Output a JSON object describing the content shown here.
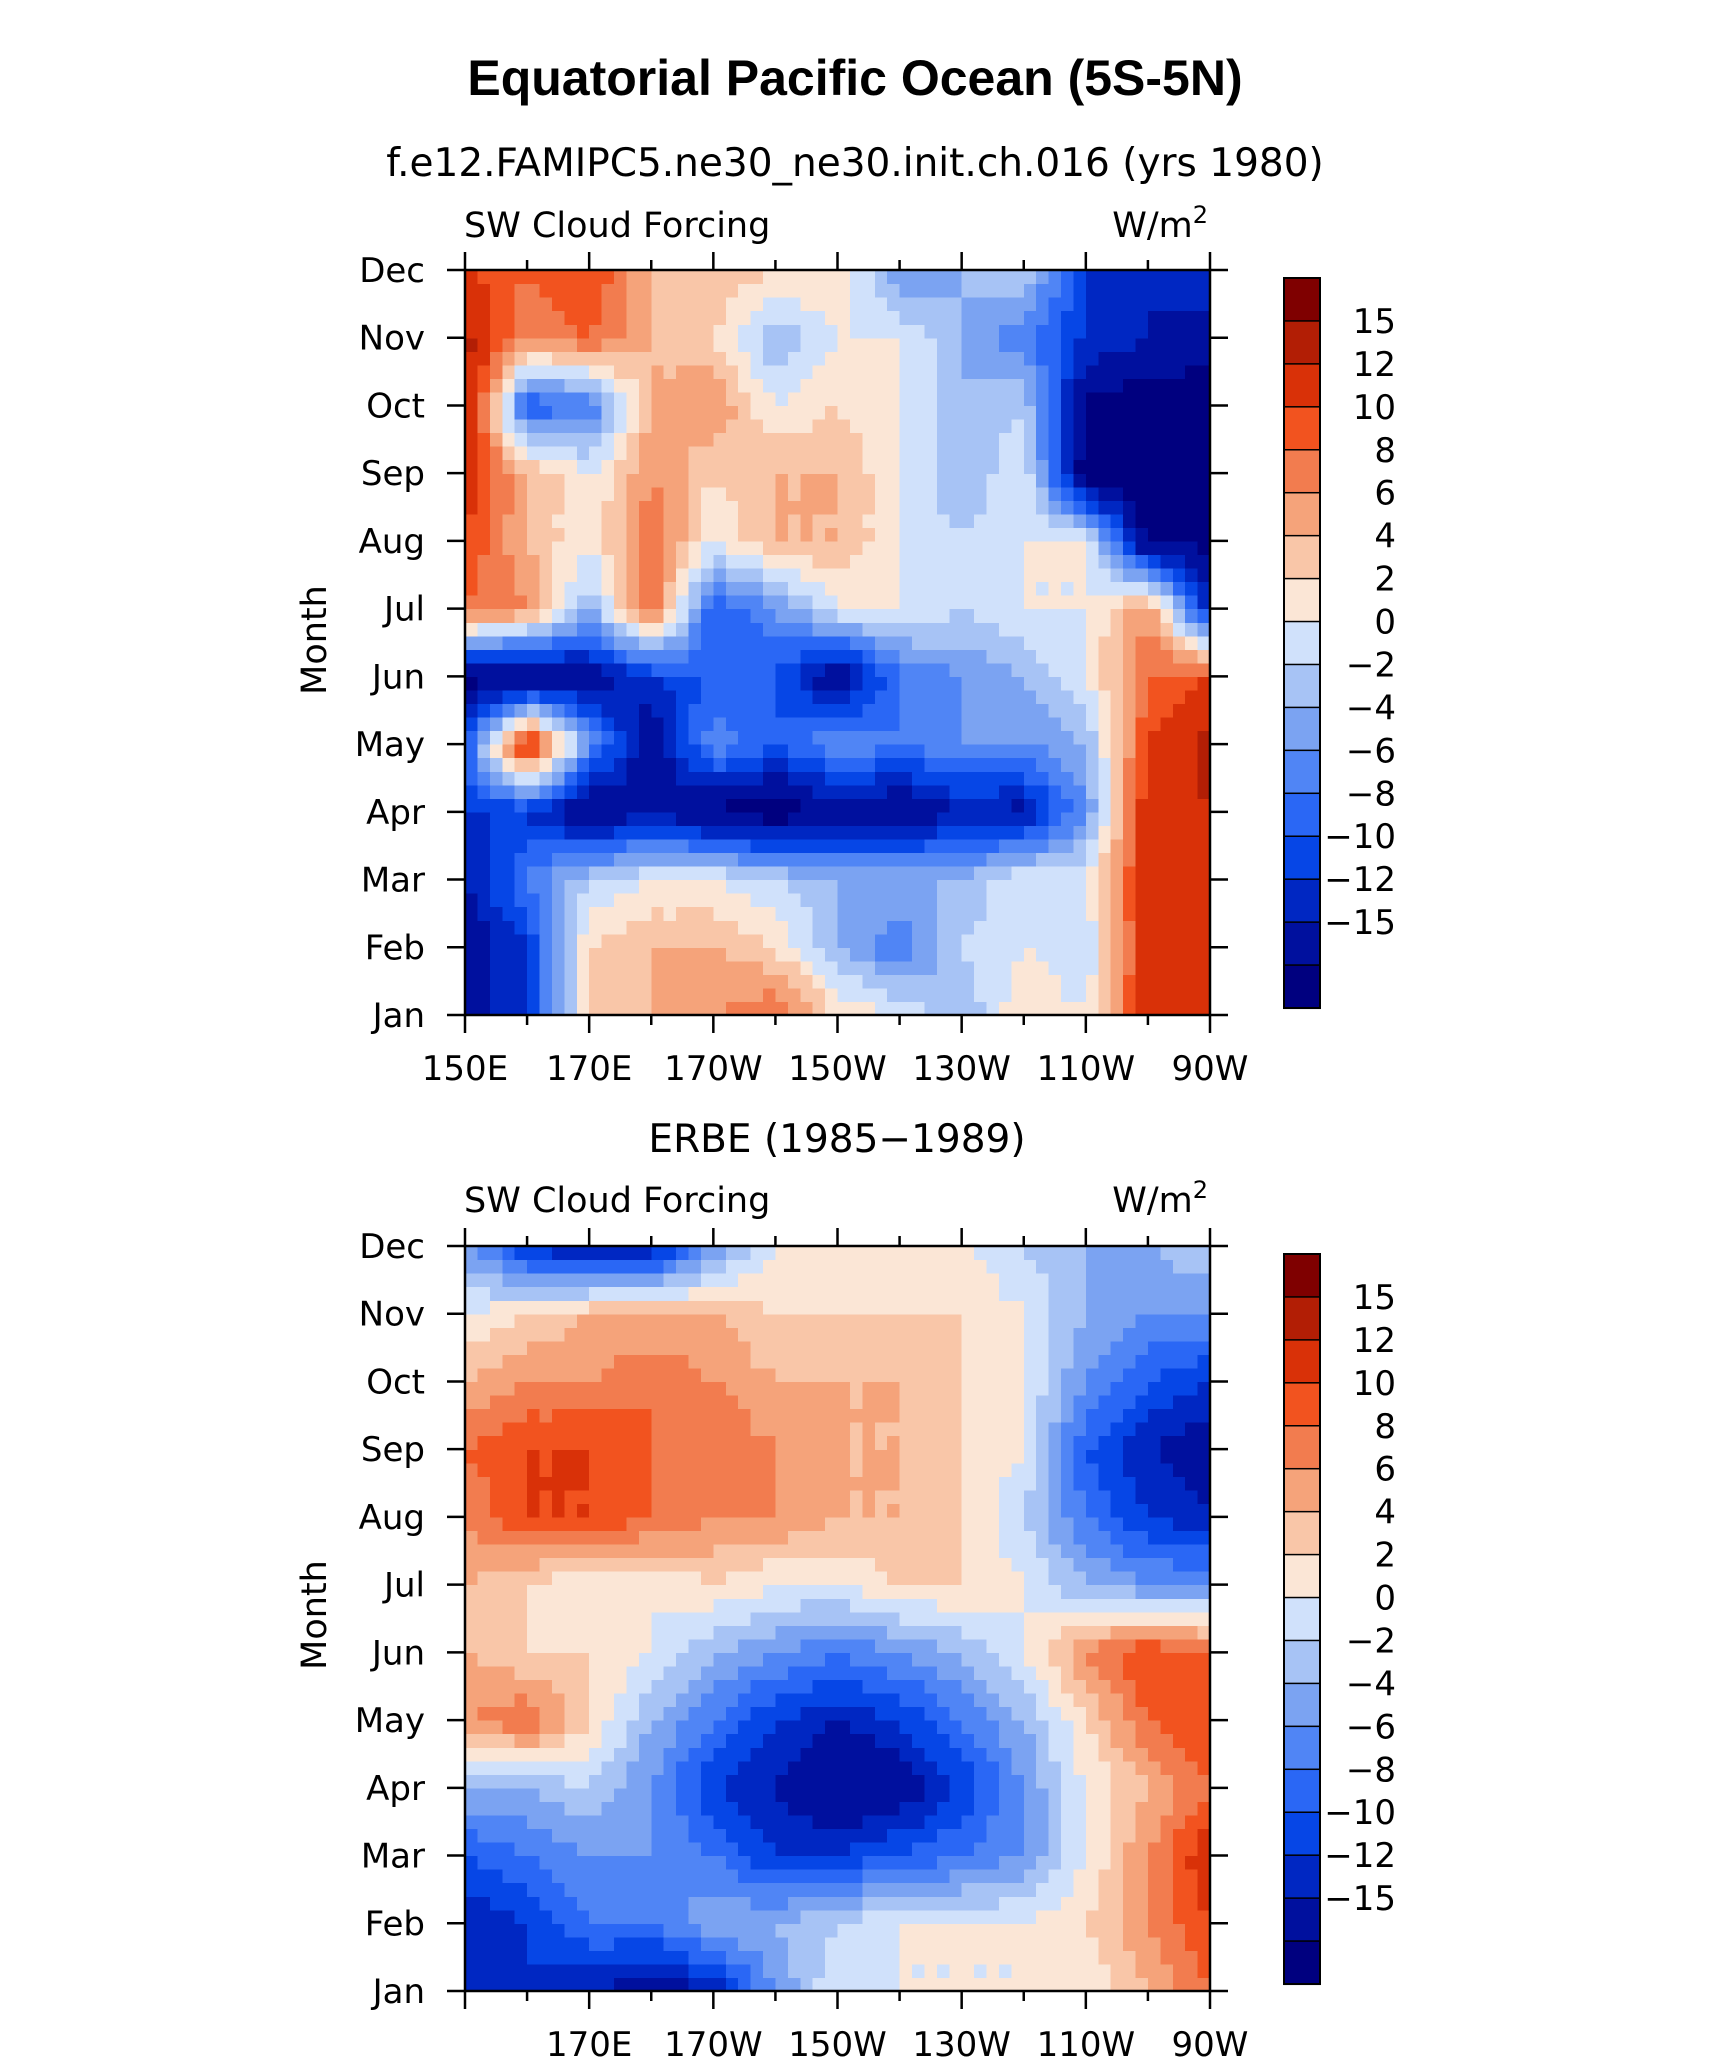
{
  "figure": {
    "title": "Equatorial Pacific Ocean (5S-5N)"
  },
  "colors": {
    "palette": [
      "#00007f",
      "#00109e",
      "#0027c2",
      "#0646e6",
      "#2a67f5",
      "#5085f5",
      "#7ba3f2",
      "#a7c3f5",
      "#d0e1fb",
      "#fbe6d6",
      "#f9c6a8",
      "#f5a37a",
      "#f27c4f",
      "#f2531f",
      "#d93108",
      "#b21e05",
      "#7f0000"
    ]
  },
  "chart_data": [
    {
      "type": "heatmap",
      "subtitle": "f.e12.FAMIPC5.ne30_ne30.init.ch.016 (yrs 1980)",
      "left_label": "SW Cloud Forcing",
      "right_label": "W/m",
      "right_label_sup": "2",
      "ylabel": "Month",
      "x": [
        150,
        160,
        170,
        180,
        190,
        200,
        210,
        220,
        230,
        240,
        250,
        260,
        270
      ],
      "x_units": "degrees east longitude",
      "x_tick_values": [
        150,
        170,
        190,
        210,
        230,
        250,
        270
      ],
      "x_tick_labels": [
        "150E",
        "170E",
        "170W",
        "150W",
        "130W",
        "110W",
        "90W"
      ],
      "y_tick_labels": [
        "Jan",
        "Feb",
        "Mar",
        "Apr",
        "May",
        "Jun",
        "Jul",
        "Aug",
        "Sep",
        "Oct",
        "Nov",
        "Dec"
      ],
      "z": [
        [
          -14,
          -10,
          4,
          6,
          8,
          10,
          4,
          2,
          -2,
          4,
          2,
          14,
          15
        ],
        [
          -14,
          -10,
          4,
          6,
          6,
          4,
          -2,
          -6,
          0,
          2,
          0,
          14,
          15
        ],
        [
          -12,
          -6,
          0,
          2,
          2,
          0,
          -2,
          -2,
          -2,
          2,
          2,
          14,
          15
        ],
        [
          -10,
          -10,
          -16,
          -12,
          -16,
          -17,
          -14,
          -15,
          -12,
          -13,
          -4,
          14,
          15
        ],
        [
          -8,
          15,
          -4,
          -15,
          -4,
          -8,
          -4,
          -6,
          -4,
          -4,
          -2,
          12,
          16
        ],
        [
          -16,
          -17,
          -14,
          -10,
          -8,
          -8,
          -15,
          -6,
          -4,
          -2,
          2,
          10,
          12
        ],
        [
          10,
          8,
          -2,
          10,
          -8,
          -4,
          2,
          2,
          0,
          2,
          2,
          8,
          -12
        ],
        [
          12,
          6,
          2,
          10,
          2,
          6,
          6,
          2,
          0,
          2,
          2,
          -16,
          -16
        ],
        [
          14,
          6,
          2,
          8,
          4,
          6,
          6,
          2,
          -2,
          2,
          -17,
          -17,
          -17
        ],
        [
          16,
          -8,
          -6,
          6,
          8,
          2,
          4,
          2,
          -2,
          0,
          -16,
          -17,
          -17
        ],
        [
          16,
          8,
          10,
          6,
          4,
          -2,
          2,
          2,
          -2,
          -6,
          -10,
          -12,
          -14
        ],
        [
          12,
          10,
          12,
          6,
          6,
          4,
          4,
          -4,
          -2,
          0,
          -10,
          -12,
          -10
        ]
      ],
      "levels": [
        -15,
        -12,
        -10,
        -8,
        -6,
        -4,
        -2,
        0,
        2,
        4,
        6,
        8,
        10,
        12,
        15
      ],
      "colorbar_labels": [
        "15",
        "12",
        "10",
        "8",
        "6",
        "4",
        "2",
        "0",
        "−2",
        "−4",
        "−6",
        "−8",
        "−10",
        "−12",
        "−15"
      ]
    },
    {
      "type": "heatmap",
      "subtitle": "ERBE (1985−1989)",
      "left_label": "SW Cloud Forcing",
      "right_label": "W/m",
      "right_label_sup": "2",
      "ylabel": "Month",
      "x": [
        150,
        160,
        170,
        180,
        190,
        200,
        210,
        220,
        230,
        240,
        250,
        260,
        270
      ],
      "x_units": "degrees east longitude",
      "x_tick_values": [
        170,
        190,
        210,
        230,
        250,
        270
      ],
      "x_tick_labels": [
        "170E",
        "170W",
        "150W",
        "130W",
        "110W",
        "90W"
      ],
      "y_tick_labels": [
        "Jan",
        "Feb",
        "Mar",
        "Apr",
        "May",
        "Jun",
        "Jul",
        "Aug",
        "Sep",
        "Oct",
        "Nov",
        "Dec"
      ],
      "z": [
        [
          -12,
          -10,
          -12,
          -14,
          -12,
          -4,
          2,
          2,
          2,
          2,
          2,
          6,
          10
        ],
        [
          -12,
          -10,
          -6,
          -6,
          -2,
          -2,
          0,
          2,
          2,
          2,
          4,
          8,
          12
        ],
        [
          -8,
          -6,
          -4,
          -4,
          -6,
          -10,
          -10,
          -8,
          -6,
          -4,
          2,
          8,
          14
        ],
        [
          -2,
          -2,
          0,
          -4,
          -10,
          -12,
          -15,
          -14,
          -10,
          -4,
          2,
          6,
          10
        ],
        [
          8,
          10,
          4,
          -2,
          -6,
          -10,
          -12,
          -10,
          -6,
          -2,
          4,
          10,
          12
        ],
        [
          6,
          4,
          4,
          2,
          -2,
          -4,
          -6,
          -4,
          -2,
          2,
          8,
          12,
          10
        ],
        [
          6,
          4,
          2,
          2,
          4,
          2,
          2,
          4,
          4,
          2,
          -2,
          -4,
          -4
        ],
        [
          8,
          12,
          12,
          10,
          8,
          8,
          6,
          6,
          4,
          0,
          -6,
          -10,
          -12
        ],
        [
          10,
          12,
          12,
          10,
          10,
          8,
          6,
          6,
          4,
          2,
          -8,
          -12,
          -14
        ],
        [
          6,
          8,
          8,
          10,
          8,
          6,
          6,
          6,
          4,
          2,
          -4,
          -8,
          -10
        ],
        [
          2,
          4,
          6,
          6,
          6,
          4,
          4,
          4,
          4,
          2,
          -2,
          -4,
          -4
        ],
        [
          -4,
          -10,
          -14,
          -12,
          -4,
          2,
          2,
          2,
          2,
          0,
          -2,
          -2,
          0
        ]
      ],
      "levels": [
        -15,
        -12,
        -10,
        -8,
        -6,
        -4,
        -2,
        0,
        2,
        4,
        6,
        8,
        10,
        12,
        15
      ],
      "colorbar_labels": [
        "15",
        "12",
        "10",
        "8",
        "6",
        "4",
        "2",
        "0",
        "−2",
        "−4",
        "−6",
        "−8",
        "−10",
        "−12",
        "−15"
      ]
    }
  ]
}
